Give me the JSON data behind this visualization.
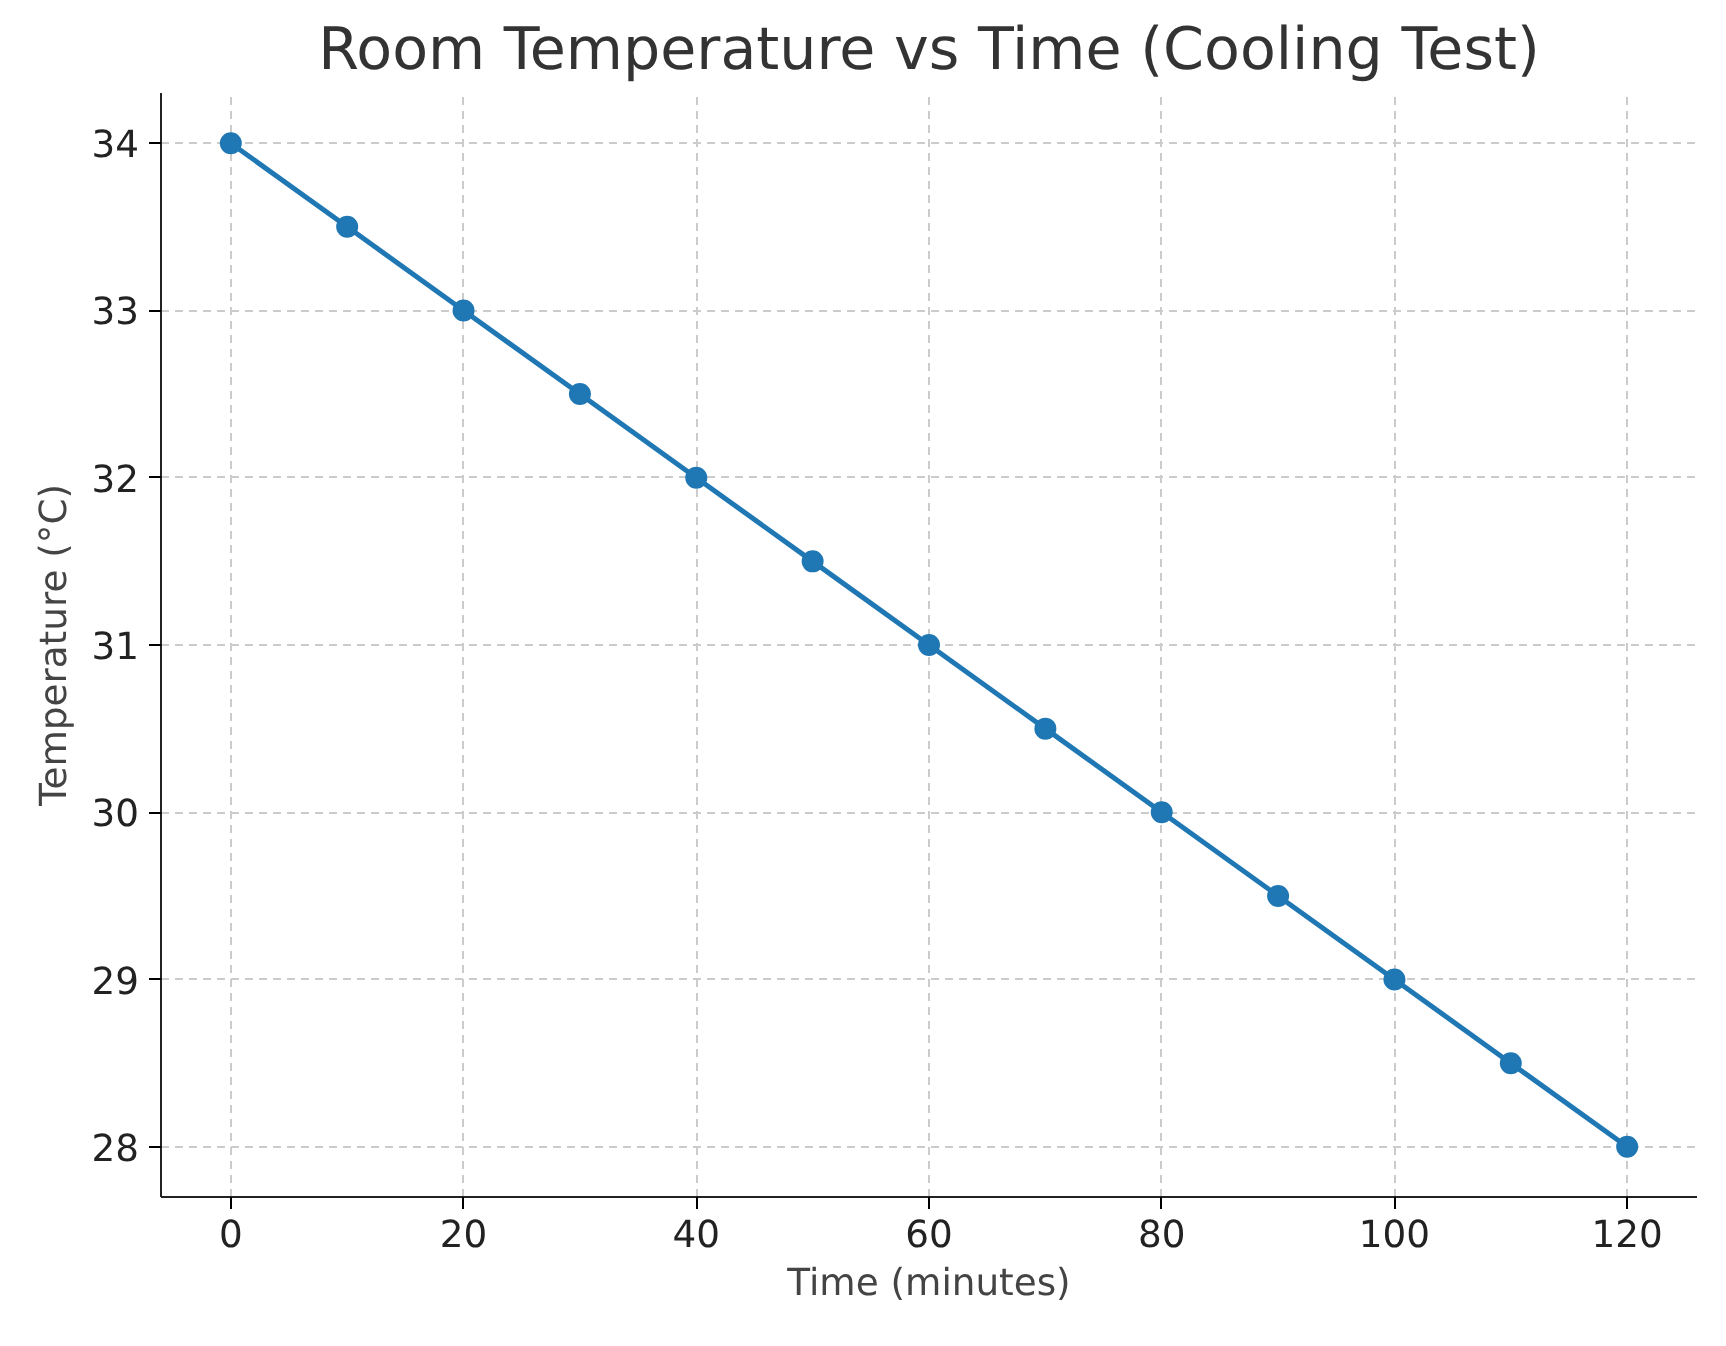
{
  "chart_data": {
    "type": "line",
    "title": "Room Temperature vs Time (Cooling Test)",
    "xlabel": "Time (minutes)",
    "ylabel": "Temperature (°C)",
    "x": [
      0,
      10,
      20,
      30,
      40,
      50,
      60,
      70,
      80,
      90,
      100,
      110,
      120
    ],
    "series": [
      {
        "color": "#1f77b4",
        "values": [
          34,
          33.5,
          33,
          32.5,
          32,
          31.5,
          31,
          30.5,
          30,
          29.5,
          29,
          28.5,
          28
        ]
      }
    ],
    "xlim": [
      -6,
      126
    ],
    "ylim": [
      27.7,
      34.3
    ],
    "xticks": [
      0,
      20,
      40,
      60,
      80,
      100,
      120
    ],
    "yticks": [
      28,
      29,
      30,
      31,
      32,
      33,
      34
    ],
    "grid": true,
    "marker": "circle",
    "line_style": "solid"
  }
}
